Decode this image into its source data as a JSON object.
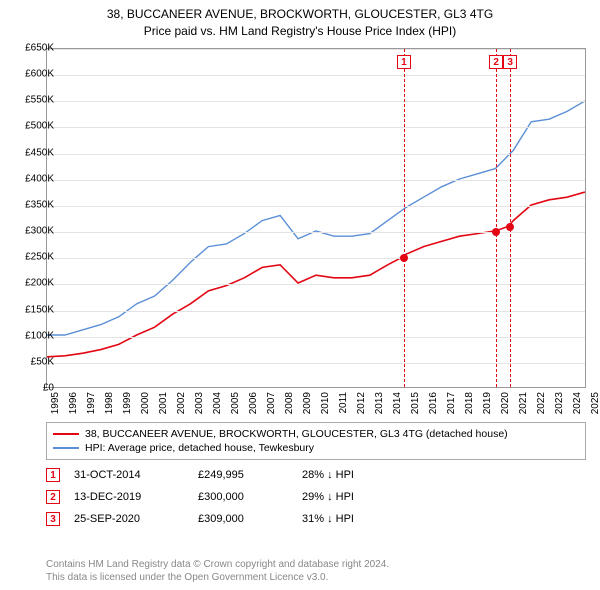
{
  "title": {
    "line1": "38, BUCCANEER AVENUE, BROCKWORTH, GLOUCESTER, GL3 4TG",
    "line2": "Price paid vs. HM Land Registry's House Price Index (HPI)"
  },
  "chart": {
    "type": "line",
    "background_color": "#ffffff",
    "grid_color": "#e4e4e4",
    "border_color": "#999999",
    "ylabel_prefix": "£",
    "ylim": [
      0,
      650000
    ],
    "ytick_step": 50000,
    "yticks": [
      "£0",
      "£50K",
      "£100K",
      "£150K",
      "£200K",
      "£250K",
      "£300K",
      "£350K",
      "£400K",
      "£450K",
      "£500K",
      "£550K",
      "£600K",
      "£650K"
    ],
    "xlim": [
      1995,
      2025
    ],
    "xticks": [
      1995,
      1996,
      1997,
      1998,
      1999,
      2000,
      2001,
      2002,
      2003,
      2004,
      2005,
      2006,
      2007,
      2008,
      2009,
      2010,
      2011,
      2012,
      2013,
      2014,
      2015,
      2016,
      2017,
      2018,
      2019,
      2020,
      2021,
      2022,
      2023,
      2024,
      2025
    ],
    "series": [
      {
        "name": "property",
        "label": "38, BUCCANEER AVENUE, BROCKWORTH, GLOUCESTER, GL3 4TG (detached house)",
        "color": "#e30613",
        "line_width": 1.6,
        "points": [
          [
            1995,
            58000
          ],
          [
            1996,
            60000
          ],
          [
            1997,
            65000
          ],
          [
            1998,
            72000
          ],
          [
            1999,
            82000
          ],
          [
            2000,
            100000
          ],
          [
            2001,
            115000
          ],
          [
            2002,
            140000
          ],
          [
            2003,
            160000
          ],
          [
            2004,
            185000
          ],
          [
            2005,
            195000
          ],
          [
            2006,
            210000
          ],
          [
            2007,
            230000
          ],
          [
            2008,
            235000
          ],
          [
            2009,
            200000
          ],
          [
            2010,
            215000
          ],
          [
            2011,
            210000
          ],
          [
            2012,
            210000
          ],
          [
            2013,
            215000
          ],
          [
            2014,
            235000
          ],
          [
            2014.83,
            249995
          ],
          [
            2015,
            255000
          ],
          [
            2016,
            270000
          ],
          [
            2017,
            280000
          ],
          [
            2018,
            290000
          ],
          [
            2019,
            295000
          ],
          [
            2019.95,
            300000
          ],
          [
            2020,
            300000
          ],
          [
            2020.73,
            309000
          ],
          [
            2021,
            320000
          ],
          [
            2022,
            350000
          ],
          [
            2023,
            360000
          ],
          [
            2024,
            365000
          ],
          [
            2025,
            375000
          ]
        ]
      },
      {
        "name": "hpi",
        "label": "HPI: Average price, detached house, Tewkesbury",
        "color": "#5b8fd6",
        "line_width": 1.4,
        "points": [
          [
            1995,
            100000
          ],
          [
            1996,
            100000
          ],
          [
            1997,
            110000
          ],
          [
            1998,
            120000
          ],
          [
            1999,
            135000
          ],
          [
            2000,
            160000
          ],
          [
            2001,
            175000
          ],
          [
            2002,
            205000
          ],
          [
            2003,
            240000
          ],
          [
            2004,
            270000
          ],
          [
            2005,
            275000
          ],
          [
            2006,
            295000
          ],
          [
            2007,
            320000
          ],
          [
            2008,
            330000
          ],
          [
            2009,
            285000
          ],
          [
            2010,
            300000
          ],
          [
            2011,
            290000
          ],
          [
            2012,
            290000
          ],
          [
            2013,
            295000
          ],
          [
            2014,
            320000
          ],
          [
            2015,
            345000
          ],
          [
            2016,
            365000
          ],
          [
            2017,
            385000
          ],
          [
            2018,
            400000
          ],
          [
            2019,
            410000
          ],
          [
            2020,
            420000
          ],
          [
            2021,
            455000
          ],
          [
            2022,
            510000
          ],
          [
            2023,
            515000
          ],
          [
            2024,
            530000
          ],
          [
            2025,
            550000
          ]
        ]
      }
    ],
    "markers": [
      {
        "id": "1",
        "x": 2014.83,
        "y": 249995,
        "color": "#e30613"
      },
      {
        "id": "2",
        "x": 2019.95,
        "y": 300000,
        "color": "#e30613"
      },
      {
        "id": "3",
        "x": 2020.73,
        "y": 309000,
        "color": "#e30613"
      }
    ],
    "marker_box_top_offset": 6
  },
  "references": [
    {
      "id": "1",
      "date": "31-OCT-2014",
      "price": "£249,995",
      "delta": "28% ↓ HPI",
      "color": "#e30613"
    },
    {
      "id": "2",
      "date": "13-DEC-2019",
      "price": "£300,000",
      "delta": "29% ↓ HPI",
      "color": "#e30613"
    },
    {
      "id": "3",
      "date": "25-SEP-2020",
      "price": "£309,000",
      "delta": "31% ↓ HPI",
      "color": "#e30613"
    }
  ],
  "footer": {
    "line1": "Contains HM Land Registry data © Crown copyright and database right 2024.",
    "line2": "This data is licensed under the Open Government Licence v3.0."
  }
}
